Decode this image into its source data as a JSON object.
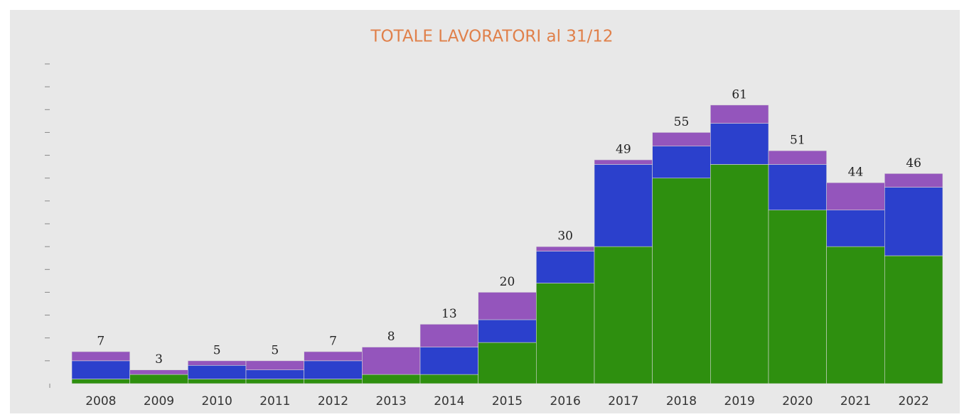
{
  "chart_data": {
    "type": "stacked_bar",
    "title": "TOTALE LAVORATORI al 31/12",
    "categories": [
      "2008",
      "2009",
      "2010",
      "2011",
      "2012",
      "2013",
      "2014",
      "2015",
      "2016",
      "2017",
      "2018",
      "2019",
      "2020",
      "2021",
      "2022"
    ],
    "series": [
      {
        "color": "#2e8f0f",
        "values": [
          1,
          2,
          1,
          1,
          1,
          2,
          2,
          9,
          22,
          30,
          45,
          48,
          38,
          30,
          28
        ]
      },
      {
        "color": "#2b40cc",
        "values": [
          4,
          0,
          3,
          2,
          4,
          0,
          6,
          5,
          7,
          18,
          7,
          9,
          10,
          8,
          15
        ]
      },
      {
        "color": "#9455bc",
        "values": [
          2,
          1,
          1,
          2,
          2,
          6,
          5,
          6,
          1,
          1,
          3,
          4,
          3,
          6,
          3
        ]
      }
    ],
    "totals": [
      7,
      3,
      5,
      5,
      7,
      8,
      13,
      20,
      30,
      49,
      55,
      61,
      51,
      44,
      46
    ],
    "ylim": [
      0,
      70
    ],
    "yticks": [
      0,
      5,
      10,
      15,
      20,
      25,
      30,
      35,
      40,
      45,
      50,
      55,
      60,
      65,
      70
    ]
  }
}
